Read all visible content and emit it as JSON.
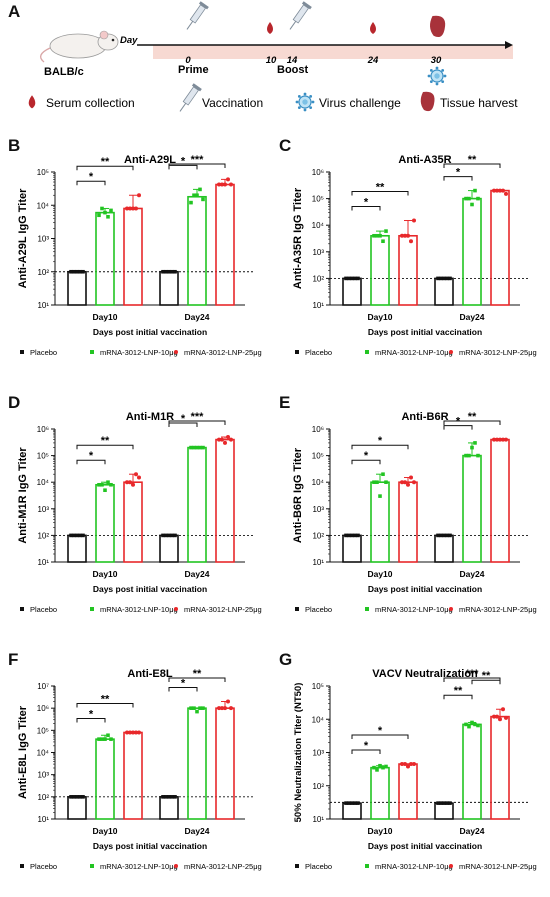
{
  "header": {
    "panel_letter": "A",
    "mouse_label": "BALB/c",
    "day_label": "Day",
    "timeline_days": [
      "0",
      "10",
      "14",
      "24",
      "30"
    ],
    "prime_label": "Prime",
    "boost_label": "Boost",
    "legend": [
      {
        "label": "Serum collection",
        "icon": "drop-icon"
      },
      {
        "label": "Vaccination",
        "icon": "syringe-icon"
      },
      {
        "label": "Virus challenge",
        "icon": "virus-icon"
      },
      {
        "label": "Tissue harvest",
        "icon": "tissue-icon"
      }
    ]
  },
  "colors": {
    "placebo": "#111111",
    "low": "#22c422",
    "high": "#e8282b",
    "timeline_band": "#f7d9d2"
  },
  "chart_data": [
    {
      "id": "B",
      "type": "bar",
      "title": "Anti-A29L",
      "ylabel": "Anti-A29L IgG Titer",
      "xlabel": "Days post initial vaccination",
      "categories": [
        "Day10",
        "Day24"
      ],
      "ylim_exp": [
        1,
        5
      ],
      "log": true,
      "lod_exp": 2,
      "series": [
        {
          "name": "Placebo",
          "values": [
            100,
            100
          ]
        },
        {
          "name": "mRNA-3012-LNP-10μg",
          "values": [
            6000,
            18000
          ]
        },
        {
          "name": "mRNA-3012-LNP-25μg",
          "values": [
            8000,
            42000
          ]
        }
      ],
      "points": [
        [
          [
            100,
            100,
            100,
            100,
            100
          ],
          [
            5000,
            8000,
            6000,
            4500,
            7000
          ],
          [
            8000,
            8000,
            8000,
            8000,
            20000
          ]
        ],
        [
          [
            100,
            100,
            100,
            100,
            100
          ],
          [
            12000,
            20000,
            20000,
            30000,
            15000
          ],
          [
            42000,
            42000,
            42000,
            60000,
            42000
          ]
        ]
      ],
      "sig": [
        {
          "g": 0,
          "a": 0,
          "b": 1,
          "t": "*"
        },
        {
          "g": 0,
          "a": 0,
          "b": 2,
          "t": "**"
        },
        {
          "g": 1,
          "a": 0,
          "b": 1,
          "t": "*"
        },
        {
          "g": 1,
          "a": 0,
          "b": 2,
          "t": "***"
        }
      ]
    },
    {
      "id": "C",
      "type": "bar",
      "title": "Anti-A35R",
      "ylabel": "Anti-A35R IgG Titer",
      "xlabel": "Days post initial vaccination",
      "categories": [
        "Day10",
        "Day24"
      ],
      "ylim_exp": [
        1,
        6
      ],
      "log": true,
      "lod_exp": 2,
      "series": [
        {
          "name": "Placebo",
          "values": [
            100,
            100
          ]
        },
        {
          "name": "mRNA-3012-LNP-10μg",
          "values": [
            4000,
            100000
          ]
        },
        {
          "name": "mRNA-3012-LNP-25μg",
          "values": [
            4000,
            200000
          ]
        }
      ],
      "points": [
        [
          [
            100,
            100,
            100,
            100,
            100
          ],
          [
            4000,
            4000,
            4000,
            2500,
            6000
          ],
          [
            4000,
            4000,
            4000,
            2500,
            15000
          ]
        ],
        [
          [
            100,
            100,
            100,
            100,
            100
          ],
          [
            100000,
            100000,
            60000,
            200000,
            100000
          ],
          [
            200000,
            200000,
            200000,
            200000,
            150000
          ]
        ]
      ],
      "sig": [
        {
          "g": 0,
          "a": 0,
          "b": 1,
          "t": "*"
        },
        {
          "g": 0,
          "a": 0,
          "b": 2,
          "t": "**"
        },
        {
          "g": 1,
          "a": 0,
          "b": 1,
          "t": "*"
        },
        {
          "g": 1,
          "a": 0,
          "b": 2,
          "t": "**"
        }
      ]
    },
    {
      "id": "D",
      "type": "bar",
      "title": "Anti-M1R",
      "ylabel": "Anti-M1R IgG Titer",
      "xlabel": "Days post initial vaccination",
      "categories": [
        "Day10",
        "Day24"
      ],
      "ylim_exp": [
        1,
        6
      ],
      "log": true,
      "lod_exp": 2,
      "series": [
        {
          "name": "Placebo",
          "values": [
            100,
            100
          ]
        },
        {
          "name": "mRNA-3012-LNP-10μg",
          "values": [
            8000,
            200000
          ]
        },
        {
          "name": "mRNA-3012-LNP-25μg",
          "values": [
            10000,
            400000
          ]
        }
      ],
      "points": [
        [
          [
            100,
            100,
            100,
            100,
            100
          ],
          [
            8000,
            8000,
            5000,
            10000,
            8000
          ],
          [
            10000,
            10000,
            8000,
            20000,
            15000
          ]
        ],
        [
          [
            100,
            100,
            100,
            100,
            100
          ],
          [
            200000,
            200000,
            200000,
            200000,
            200000
          ],
          [
            400000,
            400000,
            300000,
            500000,
            400000
          ]
        ]
      ],
      "sig": [
        {
          "g": 0,
          "a": 0,
          "b": 1,
          "t": "*"
        },
        {
          "g": 0,
          "a": 0,
          "b": 2,
          "t": "**"
        },
        {
          "g": 1,
          "a": 0,
          "b": 1,
          "t": "*"
        },
        {
          "g": 1,
          "a": 0,
          "b": 2,
          "t": "***"
        }
      ]
    },
    {
      "id": "E",
      "type": "bar",
      "title": "Anti-B6R",
      "ylabel": "Anti-B6R IgG Titer",
      "xlabel": "Days post initial vaccination",
      "categories": [
        "Day10",
        "Day24"
      ],
      "ylim_exp": [
        1,
        6
      ],
      "log": true,
      "lod_exp": 2,
      "series": [
        {
          "name": "Placebo",
          "values": [
            100,
            100
          ]
        },
        {
          "name": "mRNA-3012-LNP-10μg",
          "values": [
            10000,
            100000
          ]
        },
        {
          "name": "mRNA-3012-LNP-25μg",
          "values": [
            10000,
            400000
          ]
        }
      ],
      "points": [
        [
          [
            100,
            100,
            100,
            100,
            100
          ],
          [
            10000,
            10000,
            3000,
            20000,
            10000
          ],
          [
            10000,
            10000,
            8000,
            15000,
            10000
          ]
        ],
        [
          [
            100,
            100,
            100,
            100,
            100
          ],
          [
            100000,
            100000,
            200000,
            300000,
            100000
          ],
          [
            400000,
            400000,
            400000,
            400000,
            400000
          ]
        ]
      ],
      "sig": [
        {
          "g": 0,
          "a": 0,
          "b": 1,
          "t": "*"
        },
        {
          "g": 0,
          "a": 0,
          "b": 2,
          "t": "*"
        },
        {
          "g": 1,
          "a": 0,
          "b": 1,
          "t": "*"
        },
        {
          "g": 1,
          "a": 0,
          "b": 2,
          "t": "**"
        }
      ]
    },
    {
      "id": "F",
      "type": "bar",
      "title": "Anti-E8L",
      "ylabel": "Anti-E8L IgG Titer",
      "xlabel": "Days post initial vaccination",
      "categories": [
        "Day10",
        "Day24"
      ],
      "ylim_exp": [
        1,
        7
      ],
      "log": true,
      "lod_exp": 2,
      "series": [
        {
          "name": "Placebo",
          "values": [
            100,
            100
          ]
        },
        {
          "name": "mRNA-3012-LNP-10μg",
          "values": [
            40000,
            1000000
          ]
        },
        {
          "name": "mRNA-3012-LNP-25μg",
          "values": [
            80000,
            1000000
          ]
        }
      ],
      "points": [
        [
          [
            100,
            100,
            100,
            100,
            100
          ],
          [
            40000,
            40000,
            40000,
            60000,
            40000
          ],
          [
            80000,
            80000,
            80000,
            80000,
            80000
          ]
        ],
        [
          [
            100,
            100,
            100,
            100,
            100
          ],
          [
            1000000,
            1000000,
            700000,
            1000000,
            1000000
          ],
          [
            1000000,
            1000000,
            1000000,
            2000000,
            1000000
          ]
        ]
      ],
      "sig": [
        {
          "g": 0,
          "a": 0,
          "b": 1,
          "t": "*"
        },
        {
          "g": 0,
          "a": 0,
          "b": 2,
          "t": "**"
        },
        {
          "g": 1,
          "a": 0,
          "b": 1,
          "t": "*"
        },
        {
          "g": 1,
          "a": 0,
          "b": 2,
          "t": "**"
        }
      ]
    },
    {
      "id": "G",
      "type": "bar",
      "title": "VACV Neutralization",
      "ylabel": "50% Neutralization Titer (NT50)",
      "xlabel": "Days post initial vaccination",
      "categories": [
        "Day10",
        "Day24"
      ],
      "ylim_exp": [
        1,
        5
      ],
      "log": true,
      "lod_exp": 1.5,
      "series": [
        {
          "name": "Placebo",
          "values": [
            30,
            30
          ]
        },
        {
          "name": "mRNA-3012-LNP-10μg",
          "values": [
            350,
            7000
          ]
        },
        {
          "name": "mRNA-3012-LNP-25μg",
          "values": [
            450,
            12000
          ]
        }
      ],
      "points": [
        [
          [
            30,
            30,
            30,
            30,
            30
          ],
          [
            350,
            300,
            400,
            350,
            380
          ],
          [
            450,
            450,
            380,
            450,
            450
          ]
        ],
        [
          [
            30,
            30,
            30,
            30,
            30
          ],
          [
            7000,
            6000,
            8000,
            7000,
            6500
          ],
          [
            12000,
            12000,
            10000,
            20000,
            11000
          ]
        ]
      ],
      "sig": [
        {
          "g": 0,
          "a": 0,
          "b": 1,
          "t": "*"
        },
        {
          "g": 0,
          "a": 0,
          "b": 2,
          "t": "*"
        },
        {
          "g": 1,
          "a": 0,
          "b": 1,
          "t": "**"
        },
        {
          "g": 1,
          "a": 1,
          "b": 2,
          "t": "**"
        },
        {
          "g": 1,
          "a": 0,
          "b": 2,
          "t": "***"
        }
      ]
    }
  ]
}
